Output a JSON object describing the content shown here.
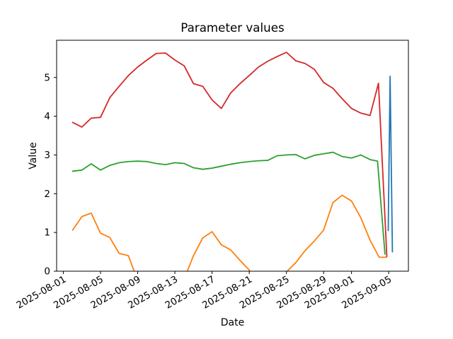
{
  "chart_data": {
    "type": "line",
    "title": "Parameter values",
    "xlabel": "Date",
    "ylabel": "Value",
    "x_unit": "days since 2025-08-01",
    "x_start_date": "2025-08-01",
    "xlim": [
      -0.72,
      37.12
    ],
    "ylim": [
      0,
      5.96
    ],
    "grid": false,
    "legend": "none",
    "background": "#ffffff",
    "x_ticks": {
      "positions": [
        0,
        4,
        8,
        12,
        16,
        20,
        24,
        28,
        31,
        35
      ],
      "labels": [
        "2025-08-01",
        "2025-08-05",
        "2025-08-09",
        "2025-08-13",
        "2025-08-17",
        "2025-08-21",
        "2025-08-25",
        "2025-08-29",
        "2025-09-01",
        "2025-09-05"
      ],
      "rotation_deg": 30
    },
    "y_ticks": {
      "positions": [
        0,
        1,
        2,
        3,
        4,
        5
      ],
      "labels": [
        "0",
        "1",
        "2",
        "3",
        "4",
        "5"
      ]
    },
    "series": [
      {
        "name": "blue",
        "color": "#1f77b4",
        "points": [
          [
            34.95,
            1.05
          ],
          [
            35.15,
            5.03
          ],
          [
            35.4,
            0.5
          ]
        ]
      },
      {
        "name": "orange",
        "color": "#ff7f0e",
        "points": [
          [
            1,
            1.06
          ],
          [
            2,
            1.41
          ],
          [
            3,
            1.5
          ],
          [
            4,
            0.98
          ],
          [
            5,
            0.87
          ],
          [
            6,
            0.46
          ],
          [
            7,
            0.4
          ],
          [
            8,
            -0.25
          ],
          [
            9,
            -0.55
          ],
          [
            10,
            -0.7
          ],
          [
            11,
            -0.6
          ],
          [
            12,
            -0.45
          ],
          [
            13,
            -0.2
          ],
          [
            14,
            0.4
          ],
          [
            15,
            0.86
          ],
          [
            16,
            1.02
          ],
          [
            17,
            0.68
          ],
          [
            18,
            0.55
          ],
          [
            19,
            0.28
          ],
          [
            20,
            0.03
          ],
          [
            21,
            -0.4
          ],
          [
            22,
            -0.55
          ],
          [
            23,
            -0.45
          ],
          [
            24,
            -0.02
          ],
          [
            25,
            0.22
          ],
          [
            26,
            0.53
          ],
          [
            27,
            0.78
          ],
          [
            28,
            1.06
          ],
          [
            29,
            1.77
          ],
          [
            30,
            1.96
          ],
          [
            31,
            1.81
          ],
          [
            32,
            1.38
          ],
          [
            33,
            0.8
          ],
          [
            33.97,
            0.36
          ],
          [
            34.75,
            0.36
          ]
        ]
      },
      {
        "name": "green",
        "color": "#2ca02c",
        "points": [
          [
            1,
            2.58
          ],
          [
            2,
            2.61
          ],
          [
            3,
            2.77
          ],
          [
            4,
            2.61
          ],
          [
            5,
            2.73
          ],
          [
            6,
            2.8
          ],
          [
            7,
            2.83
          ],
          [
            8,
            2.84
          ],
          [
            9,
            2.83
          ],
          [
            10,
            2.78
          ],
          [
            11,
            2.75
          ],
          [
            12,
            2.8
          ],
          [
            13,
            2.78
          ],
          [
            14,
            2.67
          ],
          [
            15,
            2.63
          ],
          [
            16,
            2.66
          ],
          [
            17,
            2.71
          ],
          [
            18,
            2.76
          ],
          [
            19,
            2.8
          ],
          [
            20,
            2.83
          ],
          [
            21,
            2.85
          ],
          [
            22,
            2.86
          ],
          [
            23,
            2.98
          ],
          [
            24,
            3.0
          ],
          [
            25,
            3.01
          ],
          [
            26,
            2.9
          ],
          [
            27,
            2.99
          ],
          [
            28,
            3.03
          ],
          [
            29,
            3.07
          ],
          [
            30,
            2.96
          ],
          [
            31,
            2.92
          ],
          [
            32,
            3.0
          ],
          [
            33,
            2.88
          ],
          [
            33.8,
            2.84
          ],
          [
            34.6,
            0.44
          ]
        ]
      },
      {
        "name": "red",
        "color": "#d62728",
        "points": [
          [
            1,
            3.84
          ],
          [
            2,
            3.72
          ],
          [
            3,
            3.95
          ],
          [
            4,
            3.97
          ],
          [
            5,
            4.48
          ],
          [
            6,
            4.77
          ],
          [
            7,
            5.05
          ],
          [
            8,
            5.27
          ],
          [
            9,
            5.45
          ],
          [
            10,
            5.62
          ],
          [
            11,
            5.63
          ],
          [
            12,
            5.45
          ],
          [
            13,
            5.3
          ],
          [
            14,
            4.84
          ],
          [
            15,
            4.77
          ],
          [
            16,
            4.42
          ],
          [
            17,
            4.2
          ],
          [
            18,
            4.6
          ],
          [
            19,
            4.84
          ],
          [
            20,
            5.05
          ],
          [
            21,
            5.27
          ],
          [
            22,
            5.42
          ],
          [
            23,
            5.54
          ],
          [
            24,
            5.65
          ],
          [
            25,
            5.43
          ],
          [
            26,
            5.36
          ],
          [
            27,
            5.21
          ],
          [
            28,
            4.87
          ],
          [
            29,
            4.72
          ],
          [
            30,
            4.45
          ],
          [
            31,
            4.2
          ],
          [
            32,
            4.08
          ],
          [
            33,
            4.02
          ],
          [
            33.9,
            4.85
          ],
          [
            34.8,
            0.38
          ]
        ]
      }
    ]
  }
}
